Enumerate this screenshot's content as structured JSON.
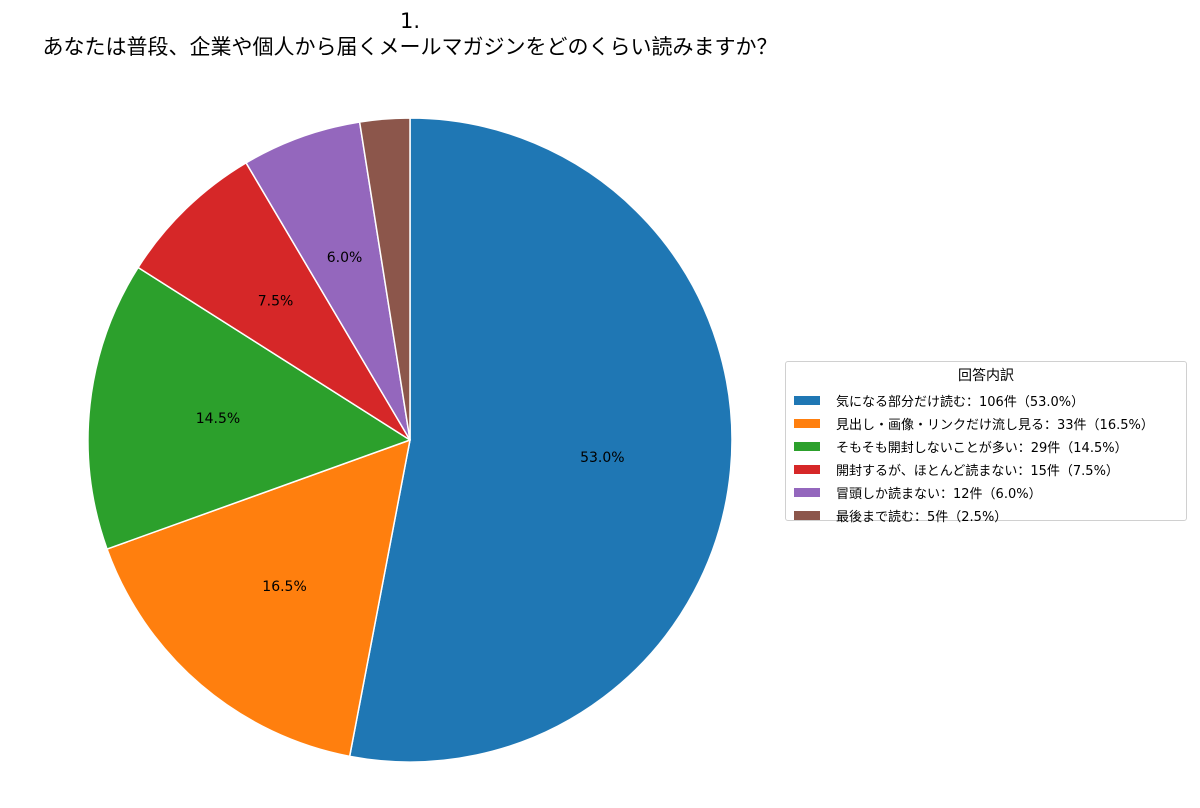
{
  "chart_data": {
    "type": "pie",
    "title_line1": "1.",
    "title_line2": "あなたは普段、企業や個人から届くメールマガジンをどのくらい読みますか？",
    "legend_title": "回答内訳",
    "legend_placement": "right",
    "start_angle_deg": 90,
    "direction": "clockwise",
    "slices": [
      {
        "label": "気になる部分だけ読む",
        "count": 106,
        "percent": 53.0,
        "pct_label": "53.0%",
        "legend_text": "気になる部分だけ読む：106件（53.0%）",
        "color": "#1f77b4"
      },
      {
        "label": "見出し・画像・リンクだけ流し見る",
        "count": 33,
        "percent": 16.5,
        "pct_label": "16.5%",
        "legend_text": "見出し・画像・リンクだけ流し見る：33件（16.5%）",
        "color": "#ff7f0e"
      },
      {
        "label": "そもそも開封しないことが多い",
        "count": 29,
        "percent": 14.5,
        "pct_label": "14.5%",
        "legend_text": "そもそも開封しないことが多い：29件（14.5%）",
        "color": "#2ca02c"
      },
      {
        "label": "開封するが、ほとんど読まない",
        "count": 15,
        "percent": 7.5,
        "pct_label": "7.5%",
        "legend_text": "開封するが、ほとんど読まない：15件（7.5%）",
        "color": "#d62728"
      },
      {
        "label": "冒頭しか読まない",
        "count": 12,
        "percent": 6.0,
        "pct_label": "6.0%",
        "legend_text": "冒頭しか読まない：12件（6.0%）",
        "color": "#9467bd"
      },
      {
        "label": "最後まで読む",
        "count": 5,
        "percent": 2.5,
        "pct_label": "",
        "legend_text": "最後まで読む：5件（2.5%）",
        "color": "#8c564b"
      }
    ]
  }
}
